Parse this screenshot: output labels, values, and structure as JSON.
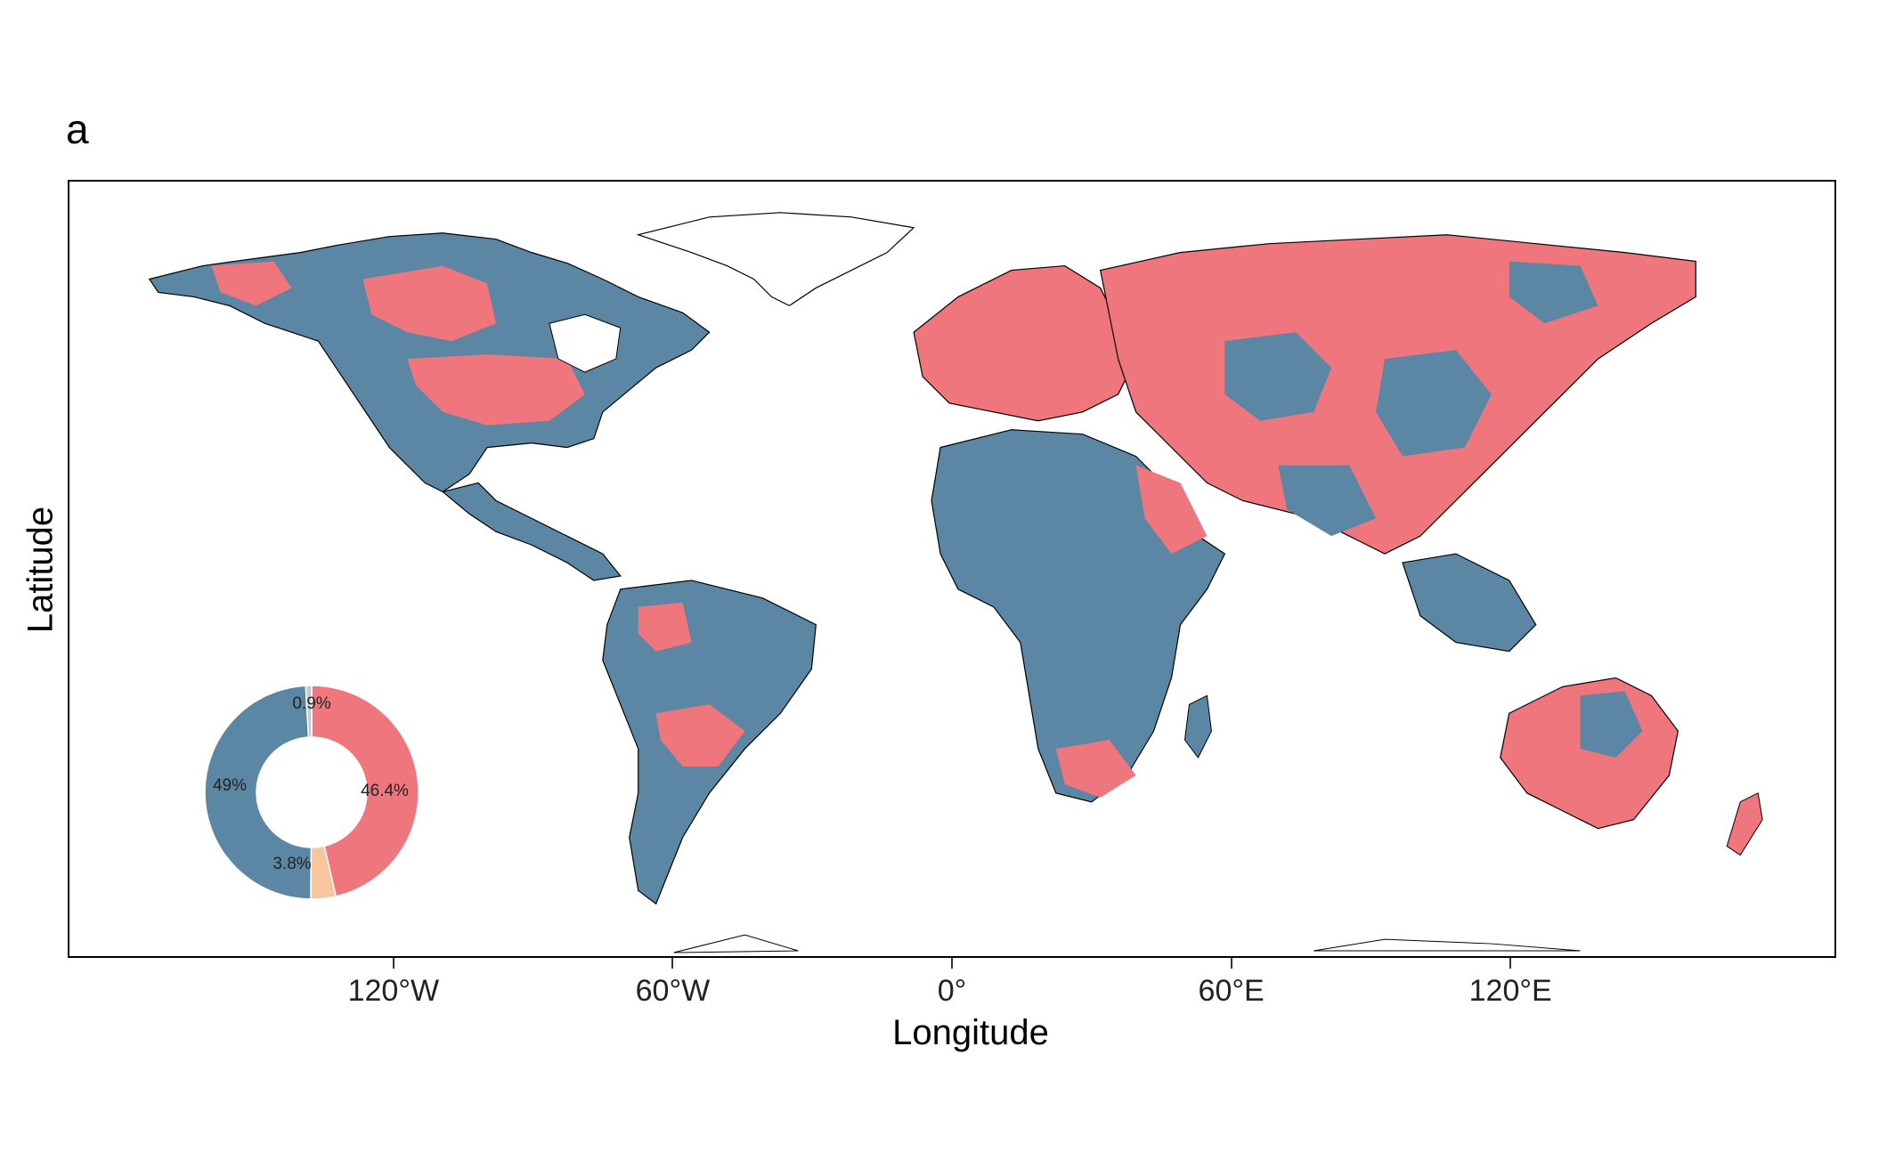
{
  "panel": {
    "label": "a"
  },
  "axes": {
    "xlabel": "Longitude",
    "ylabel": "Latitude",
    "xticks": [
      {
        "lon": -120,
        "label": "120°W"
      },
      {
        "lon": -60,
        "label": "60°W"
      },
      {
        "lon": 0,
        "label": "0°"
      },
      {
        "lon": 60,
        "label": "60°E"
      },
      {
        "lon": 120,
        "label": "120°E"
      }
    ]
  },
  "colors": {
    "blue": "#5b87a4",
    "red": "#ef767c",
    "peach": "#f7c59e",
    "grey": "#c8c8c8",
    "border": "#000000"
  },
  "inset": {
    "type": "donut",
    "slices": [
      {
        "label": "46.4%",
        "value": 46.4,
        "color": "#ef767c"
      },
      {
        "label": "3.8%",
        "value": 3.8,
        "color": "#f7c59e"
      },
      {
        "label": "49%",
        "value": 49.0,
        "color": "#5b87a4"
      },
      {
        "label": "0.9%",
        "value": 0.9,
        "color": "#c8c8c8"
      }
    ]
  }
}
